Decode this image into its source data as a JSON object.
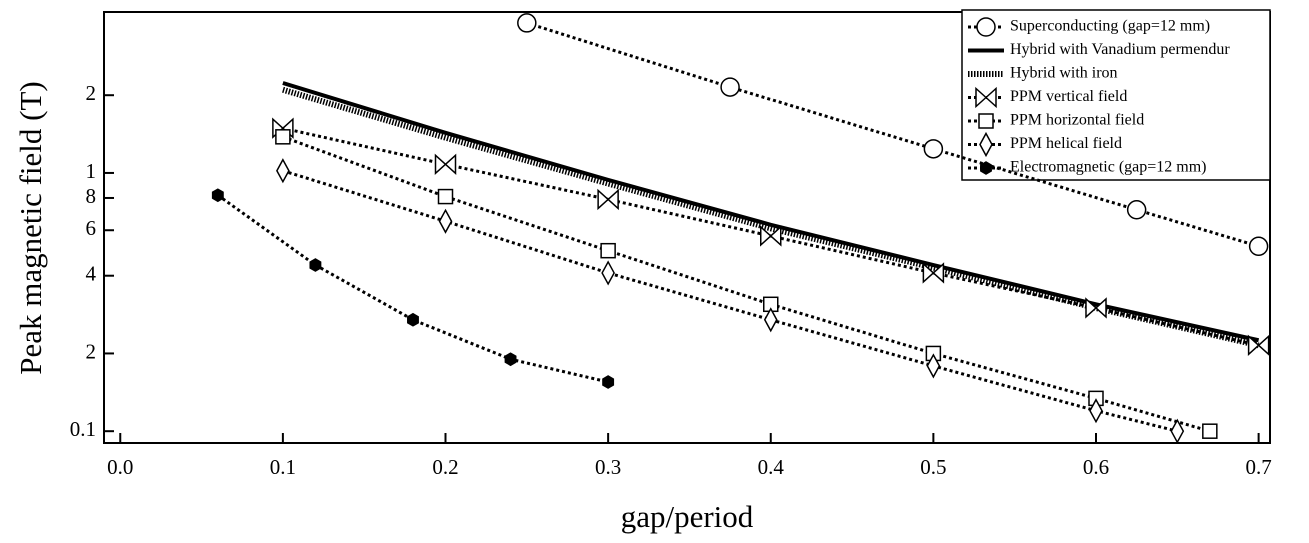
{
  "chart_data": {
    "type": "line",
    "log_y": true,
    "xlabel": "gap/period",
    "ylabel": "Peak magnetic field (T)",
    "xlim": [
      -0.01,
      0.707
    ],
    "ylim": [
      0.09,
      4.2
    ],
    "xticks": [
      {
        "value": 0,
        "label": "0.0"
      },
      0.1,
      0.2,
      0.3,
      0.4,
      0.5,
      0.6,
      0.7
    ],
    "yticks": [
      0.1,
      {
        "value": 0.2,
        "label": "2"
      },
      {
        "value": 0.4,
        "label": "4"
      },
      {
        "value": 0.6,
        "label": "6"
      },
      {
        "value": 0.8,
        "label": "8"
      },
      1,
      2
    ],
    "legend": "upper right",
    "series": [
      {
        "name": "Superconducting (gap=12 mm)",
        "color": "#000000",
        "line": "dotted",
        "marker": "circle",
        "x": [
          0.25,
          0.375,
          0.5,
          0.625,
          0.7
        ],
        "values": [
          3.81,
          2.15,
          1.24,
          0.72,
          0.52
        ]
      },
      {
        "name": "Hybrid with Vanadium permendur",
        "color": "#000000",
        "line": "solid",
        "marker": "none",
        "x": [
          0.1,
          0.2,
          0.3,
          0.4,
          0.5,
          0.6,
          0.7
        ],
        "values": [
          2.23,
          1.43,
          0.94,
          0.63,
          0.44,
          0.31,
          0.225
        ]
      },
      {
        "name": "Hybrid with iron",
        "color": "#000000",
        "line": "dense",
        "marker": "none",
        "x": [
          0.1,
          0.2,
          0.3,
          0.4,
          0.5,
          0.6,
          0.7
        ],
        "values": [
          2.1,
          1.37,
          0.91,
          0.61,
          0.43,
          0.3,
          0.215
        ]
      },
      {
        "name": "PPM vertical field",
        "color": "#000000",
        "line": "dotted",
        "marker": "bowtie",
        "x": [
          0.1,
          0.2,
          0.3,
          0.4,
          0.5,
          0.6,
          0.7
        ],
        "values": [
          1.49,
          1.08,
          0.79,
          0.57,
          0.41,
          0.3,
          0.215
        ]
      },
      {
        "name": "PPM horizontal field",
        "color": "#000000",
        "line": "dotted",
        "marker": "square",
        "x": [
          0.1,
          0.2,
          0.3,
          0.4,
          0.5,
          0.6,
          0.67
        ],
        "values": [
          1.38,
          0.81,
          0.5,
          0.31,
          0.2,
          0.134,
          0.1
        ]
      },
      {
        "name": "PPM helical field",
        "color": "#000000",
        "line": "dotted",
        "marker": "diamond",
        "x": [
          0.1,
          0.2,
          0.3,
          0.4,
          0.5,
          0.6,
          0.65
        ],
        "values": [
          1.02,
          0.65,
          0.41,
          0.27,
          0.179,
          0.12,
          0.1
        ]
      },
      {
        "name": "Electromagnetic (gap=12 mm)",
        "color": "#000000",
        "line": "dotted",
        "marker": "hexagon",
        "x": [
          0.06,
          0.12,
          0.18,
          0.24,
          0.3
        ],
        "values": [
          0.82,
          0.44,
          0.27,
          0.19,
          0.155
        ]
      }
    ]
  }
}
